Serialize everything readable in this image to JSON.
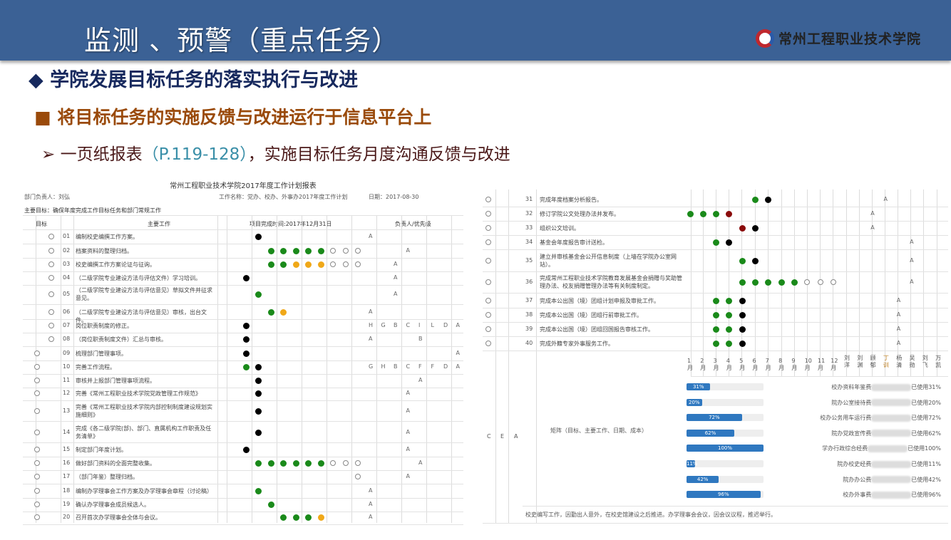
{
  "slide": {
    "title": "监测 、预警（重点任务）",
    "logo_text": "常州工程职业技术学院",
    "bullet1": "学院发展目标任务的落实执行与改进",
    "bullet2": "将目标任务的实施反馈与改进运行于信息平台上",
    "bullet3_a": "一页纸报表",
    "bullet3_ref": "（P.119-128）",
    "bullet3_b": "，实施目标任务月度沟通反馈与改进",
    "colors": {
      "band": "#3b6195",
      "bullet1": "#17295e",
      "bullet2": "#9a4a0a",
      "ref": "#3a8fa8",
      "green": "#1a8a1a",
      "yellow": "#f0a818",
      "red": "#8a0a0a",
      "black": "#000000",
      "bar": "#2f78c0"
    }
  },
  "left_table": {
    "title": "常州工程职业技术学院2017年度工作计划报表",
    "dept_head": "部门负责人：刘弘",
    "work_name": "工作名称：党办、校办、外事办2017年度工作计划",
    "date": "日期：2017-08-30",
    "main_goal": "主要目标：确保年度完成工作目标任务和部门常规工作",
    "col_goal": "目标",
    "col_work": "主要工作",
    "col_deadline": "项目完成时间:2017年12月31日",
    "col_owner": "负责人/优先级",
    "rows": [
      {
        "goal": 2,
        "no": "01",
        "text": "编制校史编撰工作方案。",
        "cells": ".k........A......."
      },
      {
        "goal": 2,
        "no": "02",
        "text": "档案资料的整理归档。",
        "cells": "..gggggooo...A...."
      },
      {
        "goal": 2,
        "no": "03",
        "text": "校史编撰工作方案论证与征询。",
        "cells": "..ggyyyooo..A....."
      },
      {
        "goal": 2,
        "no": "04",
        "text": "（二级学院专业建设方法与评估文件）学习培训。",
        "cells": "k...........A....."
      },
      {
        "goal": 2,
        "no": "05",
        "text": "（二级学院专业建设方法与评估意见）草拟文件并征求意见。",
        "cells": ".g..........A.....",
        "tall": true
      },
      {
        "goal": 2,
        "no": "06",
        "text": "（二级学院专业建设方法与评估意见）审核，出台文件。",
        "cells": "..gy......A......."
      },
      {
        "goal": 2,
        "no": "07",
        "text": "岗位职责制度的修正。",
        "cells": "k.........HGBCILDA"
      },
      {
        "goal": 2,
        "no": "08",
        "text": "（岗位职责制度文件）汇总与审核。",
        "cells": "k.........A...B..."
      },
      {
        "goal": 1,
        "no": "09",
        "text": "梳理部门管理事项。",
        "cells": "k................A"
      },
      {
        "goal": 1,
        "no": "10",
        "text": "完善工作流程。",
        "cells": "gk........GHBCFFDA"
      },
      {
        "goal": 1,
        "no": "11",
        "text": "审核并上报部门管理事项流程。",
        "cells": ".k............A..."
      },
      {
        "goal": 1,
        "no": "12",
        "text": "完善《常州工程职业技术学院党政管理工作规范》",
        "cells": ".k...........A...."
      },
      {
        "goal": 1,
        "no": "13",
        "text": "完善《常州工程职业技术学院内部控制制度建设规划实施细则》",
        "cells": ".k...........A....",
        "tall": true
      },
      {
        "goal": 1,
        "no": "14",
        "text": "完成《各二级学院(部)、部门、直属机构工作职责及任务清单》",
        "cells": ".k...........A....",
        "tall": true
      },
      {
        "goal": 1,
        "no": "15",
        "text": "制定部门年度计划。",
        "cells": "k............A...."
      },
      {
        "goal": 1,
        "no": "16",
        "text": "做好部门资料的全面完整收集。",
        "cells": ".ggggggooo....A..."
      },
      {
        "goal": 1,
        "no": "17",
        "text": "（部门年鉴）整理归档。",
        "cells": ".........o...A...."
      },
      {
        "goal": 1,
        "no": "18",
        "text": "编制办学理事会工作方案及办学理事会章程（讨论稿）",
        "cells": ".g........A......."
      },
      {
        "goal": 1,
        "no": "19",
        "text": "确认办学理事会成员候选人。",
        "cells": "..g.......A......."
      },
      {
        "goal": 1,
        "no": "20",
        "text": "召开首次办学理事会全体与会议。",
        "cells": "...gggy...A......."
      }
    ]
  },
  "right_table": {
    "rows": [
      {
        "no": "31",
        "text": "完成年度档案分析报告。",
        "cells": ".....gk........A...."
      },
      {
        "no": "32",
        "text": "修订学院公文处理办法并发布。",
        "cells": "gggr..........A....."
      },
      {
        "no": "33",
        "text": "组织公文培训。",
        "cells": "....rk........A....."
      },
      {
        "no": "34",
        "text": "基金会年度报告审计送检。",
        "cells": "..gk.............A.."
      },
      {
        "no": "35",
        "text": "建立并审核基金会公开信息制度（上墙在学院办公室网站）。",
        "cells": "....gk...........A..",
        "tall": true
      },
      {
        "no": "36",
        "text": "完成常州工程职业技术学院教育发展基金会捐赠与奖助管理办法、校友捐赠管理办法等有关制度制定。",
        "cells": "....gggggooo.....A..",
        "tall": true
      },
      {
        "no": "37",
        "text": "完成本公出国（境）团组计划申报及审批工作。",
        "cells": "..ggk...........A..."
      },
      {
        "no": "38",
        "text": "完成本公出国（境）团组行前审批工作。",
        "cells": "..ggk...........A..."
      },
      {
        "no": "39",
        "text": "完成本公出国（境）团组回国报告审核工作。",
        "cells": "..ggk...........A..."
      },
      {
        "no": "40",
        "text": "完成外籍专家外事服务工作。",
        "cells": "..ggk...........A..."
      }
    ],
    "months": [
      "1月",
      "2月",
      "3月",
      "4月",
      "5月",
      "6月",
      "7月",
      "8月",
      "9月",
      "10月",
      "11月",
      "12月"
    ],
    "owners": [
      "刘洋",
      "刘渊",
      "顾郁",
      "丁训",
      "杨清",
      "吴勋",
      "刘飞",
      "万凯"
    ],
    "priority_letters": [
      "C",
      "E",
      "A"
    ],
    "matrix_label": "矩阵（目标、主要工作、日期、成本）",
    "budgets": [
      {
        "percent": 31,
        "label": "校办资料年鉴费",
        "used": "已使用31%"
      },
      {
        "percent": 20,
        "label": "院办公室接待费",
        "used": "已使用20%"
      },
      {
        "percent": 72,
        "label": "校办公务用车运行费",
        "used": "已使用72%"
      },
      {
        "percent": 62,
        "label": "院办党政宣传费",
        "used": "已使用62%"
      },
      {
        "percent": 100,
        "label": "学办行政综合经费",
        "used": "已使用100%"
      },
      {
        "percent": 11,
        "label": "院办校史经费",
        "used": "已使用11%"
      },
      {
        "percent": 42,
        "label": "院办办公费",
        "used": "已使用42%"
      },
      {
        "percent": 96,
        "label": "校办外事费",
        "used": "已使用96%"
      }
    ],
    "note": "校史编写工作，因勤出人意外，在校史馆建设之后推进。办学理事会会议，因会议议程，推迟举行。"
  }
}
